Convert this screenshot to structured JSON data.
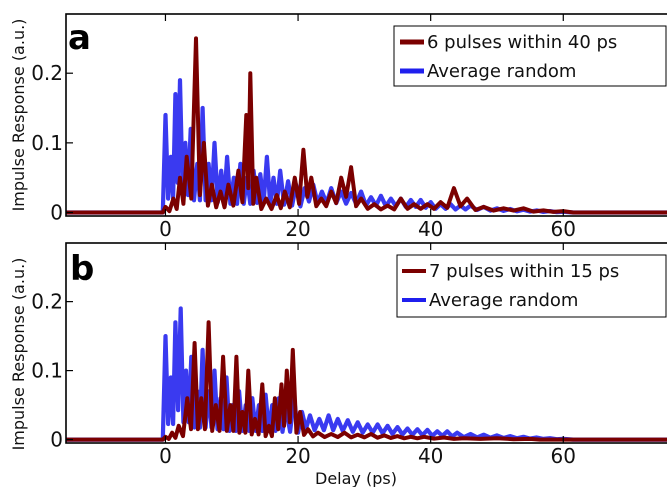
{
  "chart_data": [
    {
      "type": "line",
      "panel_label": "a",
      "xlabel": "",
      "ylabel": "Impulse Response (a.u.)",
      "xlim": [
        -15,
        77
      ],
      "ylim": [
        -0.005,
        0.285
      ],
      "xticks": [
        "0",
        "20",
        "40",
        "60"
      ],
      "yticks": [
        "0",
        "0.1",
        "0.2"
      ],
      "legend_position": "top-right",
      "series": [
        {
          "name": "6 pulses within 40 ps",
          "color": "#7b0000",
          "peaks": [
            [
              0,
              0.008
            ],
            [
              1.2,
              0.02
            ],
            [
              2.2,
              0.05
            ],
            [
              3.2,
              0.08
            ],
            [
              4.6,
              0.25
            ],
            [
              5.8,
              0.1
            ],
            [
              7,
              0.04
            ],
            [
              8.3,
              0.03
            ],
            [
              9.5,
              0.04
            ],
            [
              11,
              0.06
            ],
            [
              12.2,
              0.14
            ],
            [
              12.8,
              0.2
            ],
            [
              13.7,
              0.05
            ],
            [
              15.2,
              0.02
            ],
            [
              16.8,
              0.025
            ],
            [
              18,
              0.03
            ],
            [
              19.5,
              0.05
            ],
            [
              20.8,
              0.09
            ],
            [
              22,
              0.05
            ],
            [
              23.5,
              0.02
            ],
            [
              25,
              0.03
            ],
            [
              26.5,
              0.05
            ],
            [
              28,
              0.065
            ],
            [
              29.5,
              0.02
            ],
            [
              31.5,
              0.012
            ],
            [
              33.5,
              0.01
            ],
            [
              35.5,
              0.02
            ],
            [
              37.5,
              0.012
            ],
            [
              39.5,
              0.012
            ],
            [
              41.5,
              0.015
            ],
            [
              43.5,
              0.035
            ],
            [
              45.5,
              0.02
            ],
            [
              48,
              0.008
            ],
            [
              51,
              0.006
            ],
            [
              54,
              0.006
            ],
            [
              57,
              0.003
            ],
            [
              60,
              0.002
            ]
          ]
        },
        {
          "name": "Average random",
          "color": "#1f1fee",
          "peaks": [
            [
              0,
              0.14
            ],
            [
              0.8,
              0.08
            ],
            [
              1.5,
              0.17
            ],
            [
              2.2,
              0.19
            ],
            [
              3,
              0.1
            ],
            [
              3.8,
              0.12
            ],
            [
              4.8,
              0.07
            ],
            [
              5.6,
              0.15
            ],
            [
              6.5,
              0.07
            ],
            [
              7.4,
              0.1
            ],
            [
              8.4,
              0.06
            ],
            [
              9.3,
              0.08
            ],
            [
              10.3,
              0.05
            ],
            [
              11.3,
              0.07
            ],
            [
              12.3,
              0.05
            ],
            [
              13.3,
              0.06
            ],
            [
              14.3,
              0.055
            ],
            [
              15.3,
              0.08
            ],
            [
              16.3,
              0.05
            ],
            [
              17.3,
              0.06
            ],
            [
              18.5,
              0.045
            ],
            [
              19.7,
              0.04
            ],
            [
              21,
              0.035
            ],
            [
              22.3,
              0.04
            ],
            [
              23.6,
              0.03
            ],
            [
              25,
              0.035
            ],
            [
              26.5,
              0.03
            ],
            [
              28,
              0.028
            ],
            [
              29.5,
              0.03
            ],
            [
              31,
              0.022
            ],
            [
              32.5,
              0.024
            ],
            [
              34,
              0.02
            ],
            [
              35.5,
              0.02
            ],
            [
              37,
              0.018
            ],
            [
              38.5,
              0.018
            ],
            [
              40,
              0.015
            ],
            [
              41.5,
              0.012
            ],
            [
              43,
              0.012
            ],
            [
              44.5,
              0.01
            ],
            [
              46,
              0.01
            ],
            [
              48,
              0.008
            ],
            [
              50,
              0.006
            ],
            [
              52,
              0.005
            ],
            [
              54,
              0.004
            ],
            [
              56,
              0.003
            ],
            [
              58,
              0.002
            ],
            [
              60,
              0.001
            ]
          ]
        }
      ]
    },
    {
      "type": "line",
      "panel_label": "b",
      "xlabel": "Delay (ps)",
      "ylabel": "Impulse Response (a.u.)",
      "xlim": [
        -15,
        77
      ],
      "ylim": [
        -0.005,
        0.285
      ],
      "xticks": [
        "0",
        "20",
        "40",
        "60"
      ],
      "yticks": [
        "0",
        "0.1",
        "0.2"
      ],
      "legend_position": "top-right",
      "series": [
        {
          "name": "7 pulses within 15 ps",
          "color": "#7b0000",
          "peaks": [
            [
              0,
              0.004
            ],
            [
              1,
              0.01
            ],
            [
              2,
              0.02
            ],
            [
              3.3,
              0.06
            ],
            [
              4.4,
              0.14
            ],
            [
              5.4,
              0.06
            ],
            [
              6.5,
              0.17
            ],
            [
              7.6,
              0.05
            ],
            [
              8.7,
              0.12
            ],
            [
              9.8,
              0.05
            ],
            [
              10.7,
              0.12
            ],
            [
              11.6,
              0.04
            ],
            [
              12.5,
              0.1
            ],
            [
              13.5,
              0.03
            ],
            [
              14.6,
              0.08
            ],
            [
              15.6,
              0.02
            ],
            [
              16.5,
              0.06
            ],
            [
              17.5,
              0.08
            ],
            [
              18.3,
              0.1
            ],
            [
              19.2,
              0.13
            ],
            [
              20.3,
              0.04
            ],
            [
              21.5,
              0.015
            ],
            [
              23,
              0.01
            ],
            [
              25,
              0.008
            ],
            [
              27,
              0.01
            ],
            [
              29,
              0.007
            ],
            [
              31,
              0.008
            ],
            [
              33,
              0.006
            ],
            [
              35,
              0.005
            ],
            [
              37,
              0.004
            ],
            [
              39,
              0.004
            ],
            [
              42,
              0.003
            ],
            [
              45,
              0.002
            ],
            [
              50,
              0.002
            ],
            [
              55,
              0.001
            ]
          ]
        },
        {
          "name": "Average random",
          "color": "#1f1fee",
          "peaks": [
            [
              0,
              0.15
            ],
            [
              0.8,
              0.09
            ],
            [
              1.5,
              0.17
            ],
            [
              2.3,
              0.19
            ],
            [
              3.1,
              0.1
            ],
            [
              3.9,
              0.12
            ],
            [
              4.8,
              0.07
            ],
            [
              5.6,
              0.13
            ],
            [
              6.5,
              0.07
            ],
            [
              7.4,
              0.1
            ],
            [
              8.3,
              0.06
            ],
            [
              9.2,
              0.09
            ],
            [
              10.1,
              0.05
            ],
            [
              11.1,
              0.07
            ],
            [
              12.1,
              0.05
            ],
            [
              13.1,
              0.06
            ],
            [
              14.1,
              0.05
            ],
            [
              15.1,
              0.065
            ],
            [
              16.1,
              0.05
            ],
            [
              17.1,
              0.06
            ],
            [
              18.2,
              0.045
            ],
            [
              19.4,
              0.06
            ],
            [
              20.6,
              0.04
            ],
            [
              21.8,
              0.035
            ],
            [
              23.2,
              0.03
            ],
            [
              24.6,
              0.035
            ],
            [
              26,
              0.03
            ],
            [
              27.5,
              0.028
            ],
            [
              29,
              0.025
            ],
            [
              30.5,
              0.022
            ],
            [
              32,
              0.022
            ],
            [
              33.5,
              0.02
            ],
            [
              35,
              0.018
            ],
            [
              36.5,
              0.016
            ],
            [
              38,
              0.015
            ],
            [
              39.5,
              0.014
            ],
            [
              41,
              0.012
            ],
            [
              42.5,
              0.012
            ],
            [
              44,
              0.01
            ],
            [
              46,
              0.008
            ],
            [
              48,
              0.007
            ],
            [
              50,
              0.006
            ],
            [
              52,
              0.005
            ],
            [
              54,
              0.004
            ],
            [
              56,
              0.003
            ],
            [
              58,
              0.002
            ],
            [
              60,
              0.001
            ]
          ]
        }
      ]
    }
  ]
}
